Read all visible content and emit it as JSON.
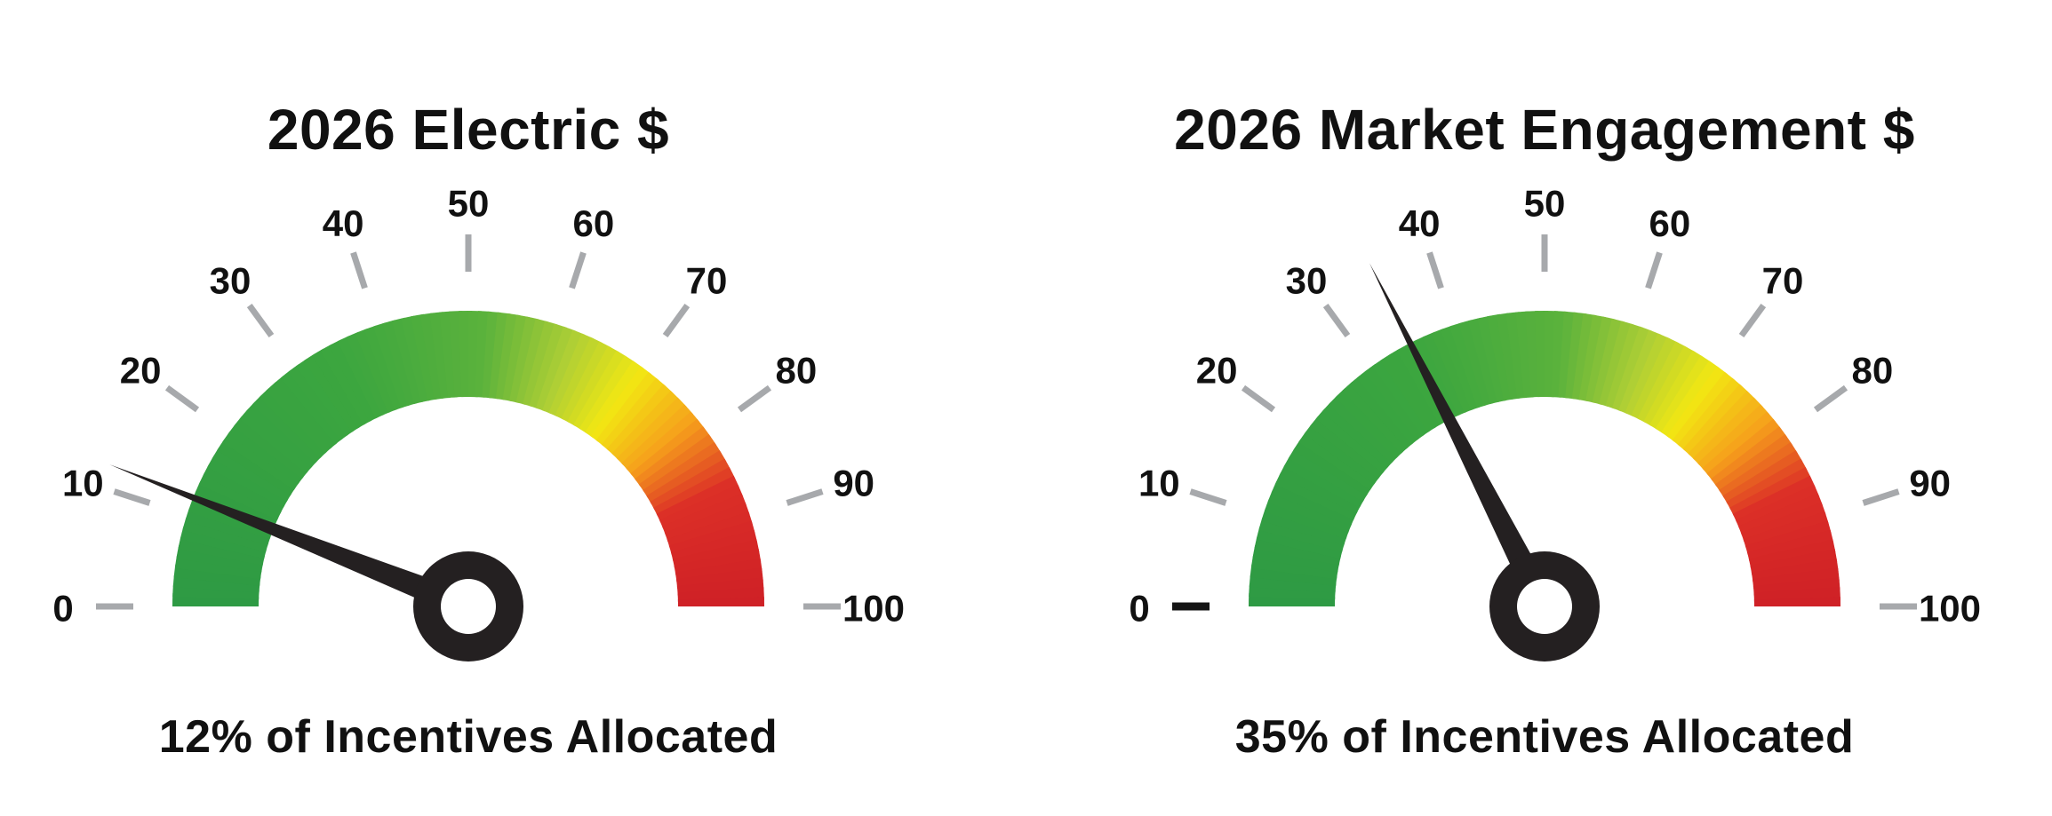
{
  "page": {
    "background_color": "#FFFFFF",
    "text_color": "#111111"
  },
  "style": {
    "tick_color": "#A7A9AC",
    "tick_label_color": "#111111",
    "needle_color": "#242021",
    "hub_hole_color": "#FFFFFF",
    "arc_gradient": [
      {
        "t": 0.0,
        "color": "#2E9A44"
      },
      {
        "t": 0.35,
        "color": "#3CA63F"
      },
      {
        "t": 0.52,
        "color": "#5BB23C"
      },
      {
        "t": 0.62,
        "color": "#AFCF35"
      },
      {
        "t": 0.7,
        "color": "#F2E713"
      },
      {
        "t": 0.78,
        "color": "#F6A01B"
      },
      {
        "t": 0.86,
        "color": "#DC2F27"
      },
      {
        "t": 1.0,
        "color": "#CE2026"
      }
    ]
  },
  "chart_data": [
    {
      "type": "gauge",
      "title": "2026 Electric $",
      "caption": "12% of Incentives Allocated",
      "value": 12,
      "min": 0,
      "max": 100,
      "tick_step": 10,
      "tick_labels": [
        "0",
        "10",
        "20",
        "30",
        "40",
        "50",
        "60",
        "70",
        "80",
        "90",
        "100"
      ],
      "zero_tick_color": "#A7A9AC",
      "zero_tick_width": 7,
      "sweep_degrees": 180,
      "legend": "none",
      "grid": false
    },
    {
      "type": "gauge",
      "title": "2026 Market Engagement $",
      "caption": "35% of Incentives Allocated",
      "value": 35,
      "min": 0,
      "max": 100,
      "tick_step": 10,
      "tick_labels": [
        "0",
        "10",
        "20",
        "30",
        "40",
        "50",
        "60",
        "70",
        "80",
        "90",
        "100"
      ],
      "zero_tick_color": "#151515",
      "zero_tick_width": 9,
      "sweep_degrees": 180,
      "legend": "none",
      "grid": false
    }
  ]
}
